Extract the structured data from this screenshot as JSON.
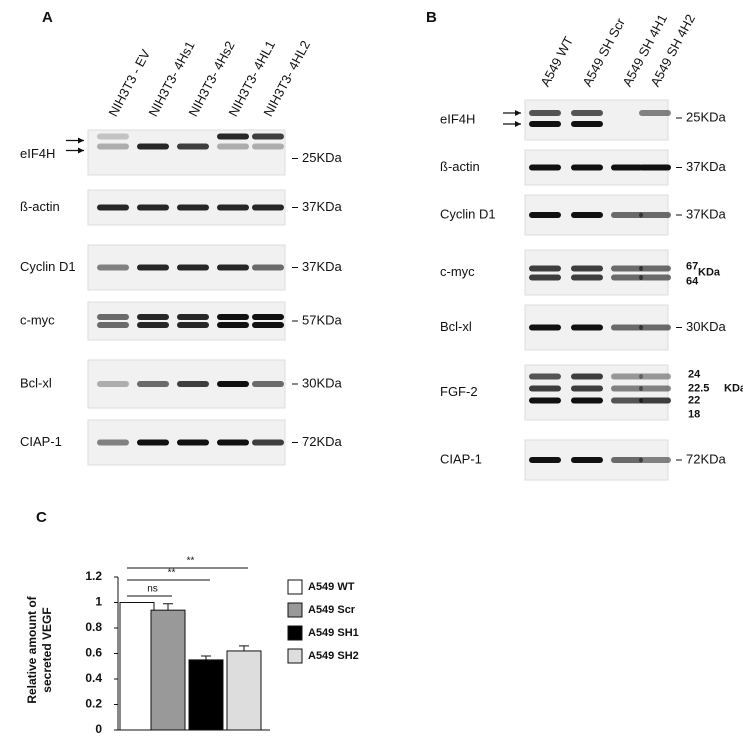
{
  "panel_a": {
    "label": "A",
    "lanes": [
      "NIH3T3 - EV",
      "NIH3T3- 4Hs1",
      "NIH3T3- 4Hs2",
      "NIH3T3- 4HL1",
      "NIH3T3- 4HL2"
    ],
    "rows": [
      {
        "name": "eIF4H",
        "markers": [
          "25KDa"
        ]
      },
      {
        "name": "ß-actin",
        "markers": [
          "37KDa"
        ]
      },
      {
        "name": "Cyclin D1",
        "markers": [
          "37KDa"
        ]
      },
      {
        "name": "c-myc",
        "markers": [
          "57KDa"
        ]
      },
      {
        "name": "Bcl-xl",
        "markers": [
          "30KDa"
        ]
      },
      {
        "name": "CIAP-1",
        "markers": [
          "72KDa"
        ]
      }
    ]
  },
  "panel_b": {
    "label": "B",
    "lanes": [
      "A549 WT",
      "A549 SH Scr",
      "A549 SH 4H1",
      "A549 SH 4H2"
    ],
    "rows": [
      {
        "name": "eIF4H",
        "markers": [
          "25KDa"
        ]
      },
      {
        "name": "ß-actin",
        "markers": [
          "37KDa"
        ]
      },
      {
        "name": "Cyclin D1",
        "markers": [
          "37KDa"
        ]
      },
      {
        "name": "c-myc",
        "markers": [
          "67",
          "KDa",
          "64"
        ]
      },
      {
        "name": "Bcl-xl",
        "markers": [
          "30KDa"
        ]
      },
      {
        "name": "FGF-2",
        "markers": [
          "24",
          "22.5",
          "22",
          "18",
          "KDa"
        ]
      },
      {
        "name": "CIAP-1",
        "markers": [
          "72KDa"
        ]
      }
    ]
  },
  "chart_data": {
    "type": "bar",
    "label": "C",
    "ylabel": [
      "Relative amount of",
      "secreted VEGF"
    ],
    "categories": [
      null
    ],
    "series": [
      {
        "name": "A549 WT",
        "color": "#ffffff",
        "values": [
          1.0
        ],
        "errors": [
          0
        ]
      },
      {
        "name": "A549 Scr",
        "color": "#999999",
        "values": [
          0.94
        ],
        "errors": [
          0.05
        ]
      },
      {
        "name": "A549 SH1",
        "color": "#000000",
        "values": [
          0.55
        ],
        "errors": [
          0.03
        ]
      },
      {
        "name": "A549 SH2",
        "color": "#dddddd",
        "values": [
          0.62
        ],
        "errors": [
          0.04
        ]
      }
    ],
    "ylim": [
      0,
      1.2
    ],
    "yticks": [
      0,
      0.2,
      0.4,
      0.6,
      0.8,
      1,
      1.2
    ],
    "annotations": [
      "ns",
      "**",
      "**"
    ]
  }
}
